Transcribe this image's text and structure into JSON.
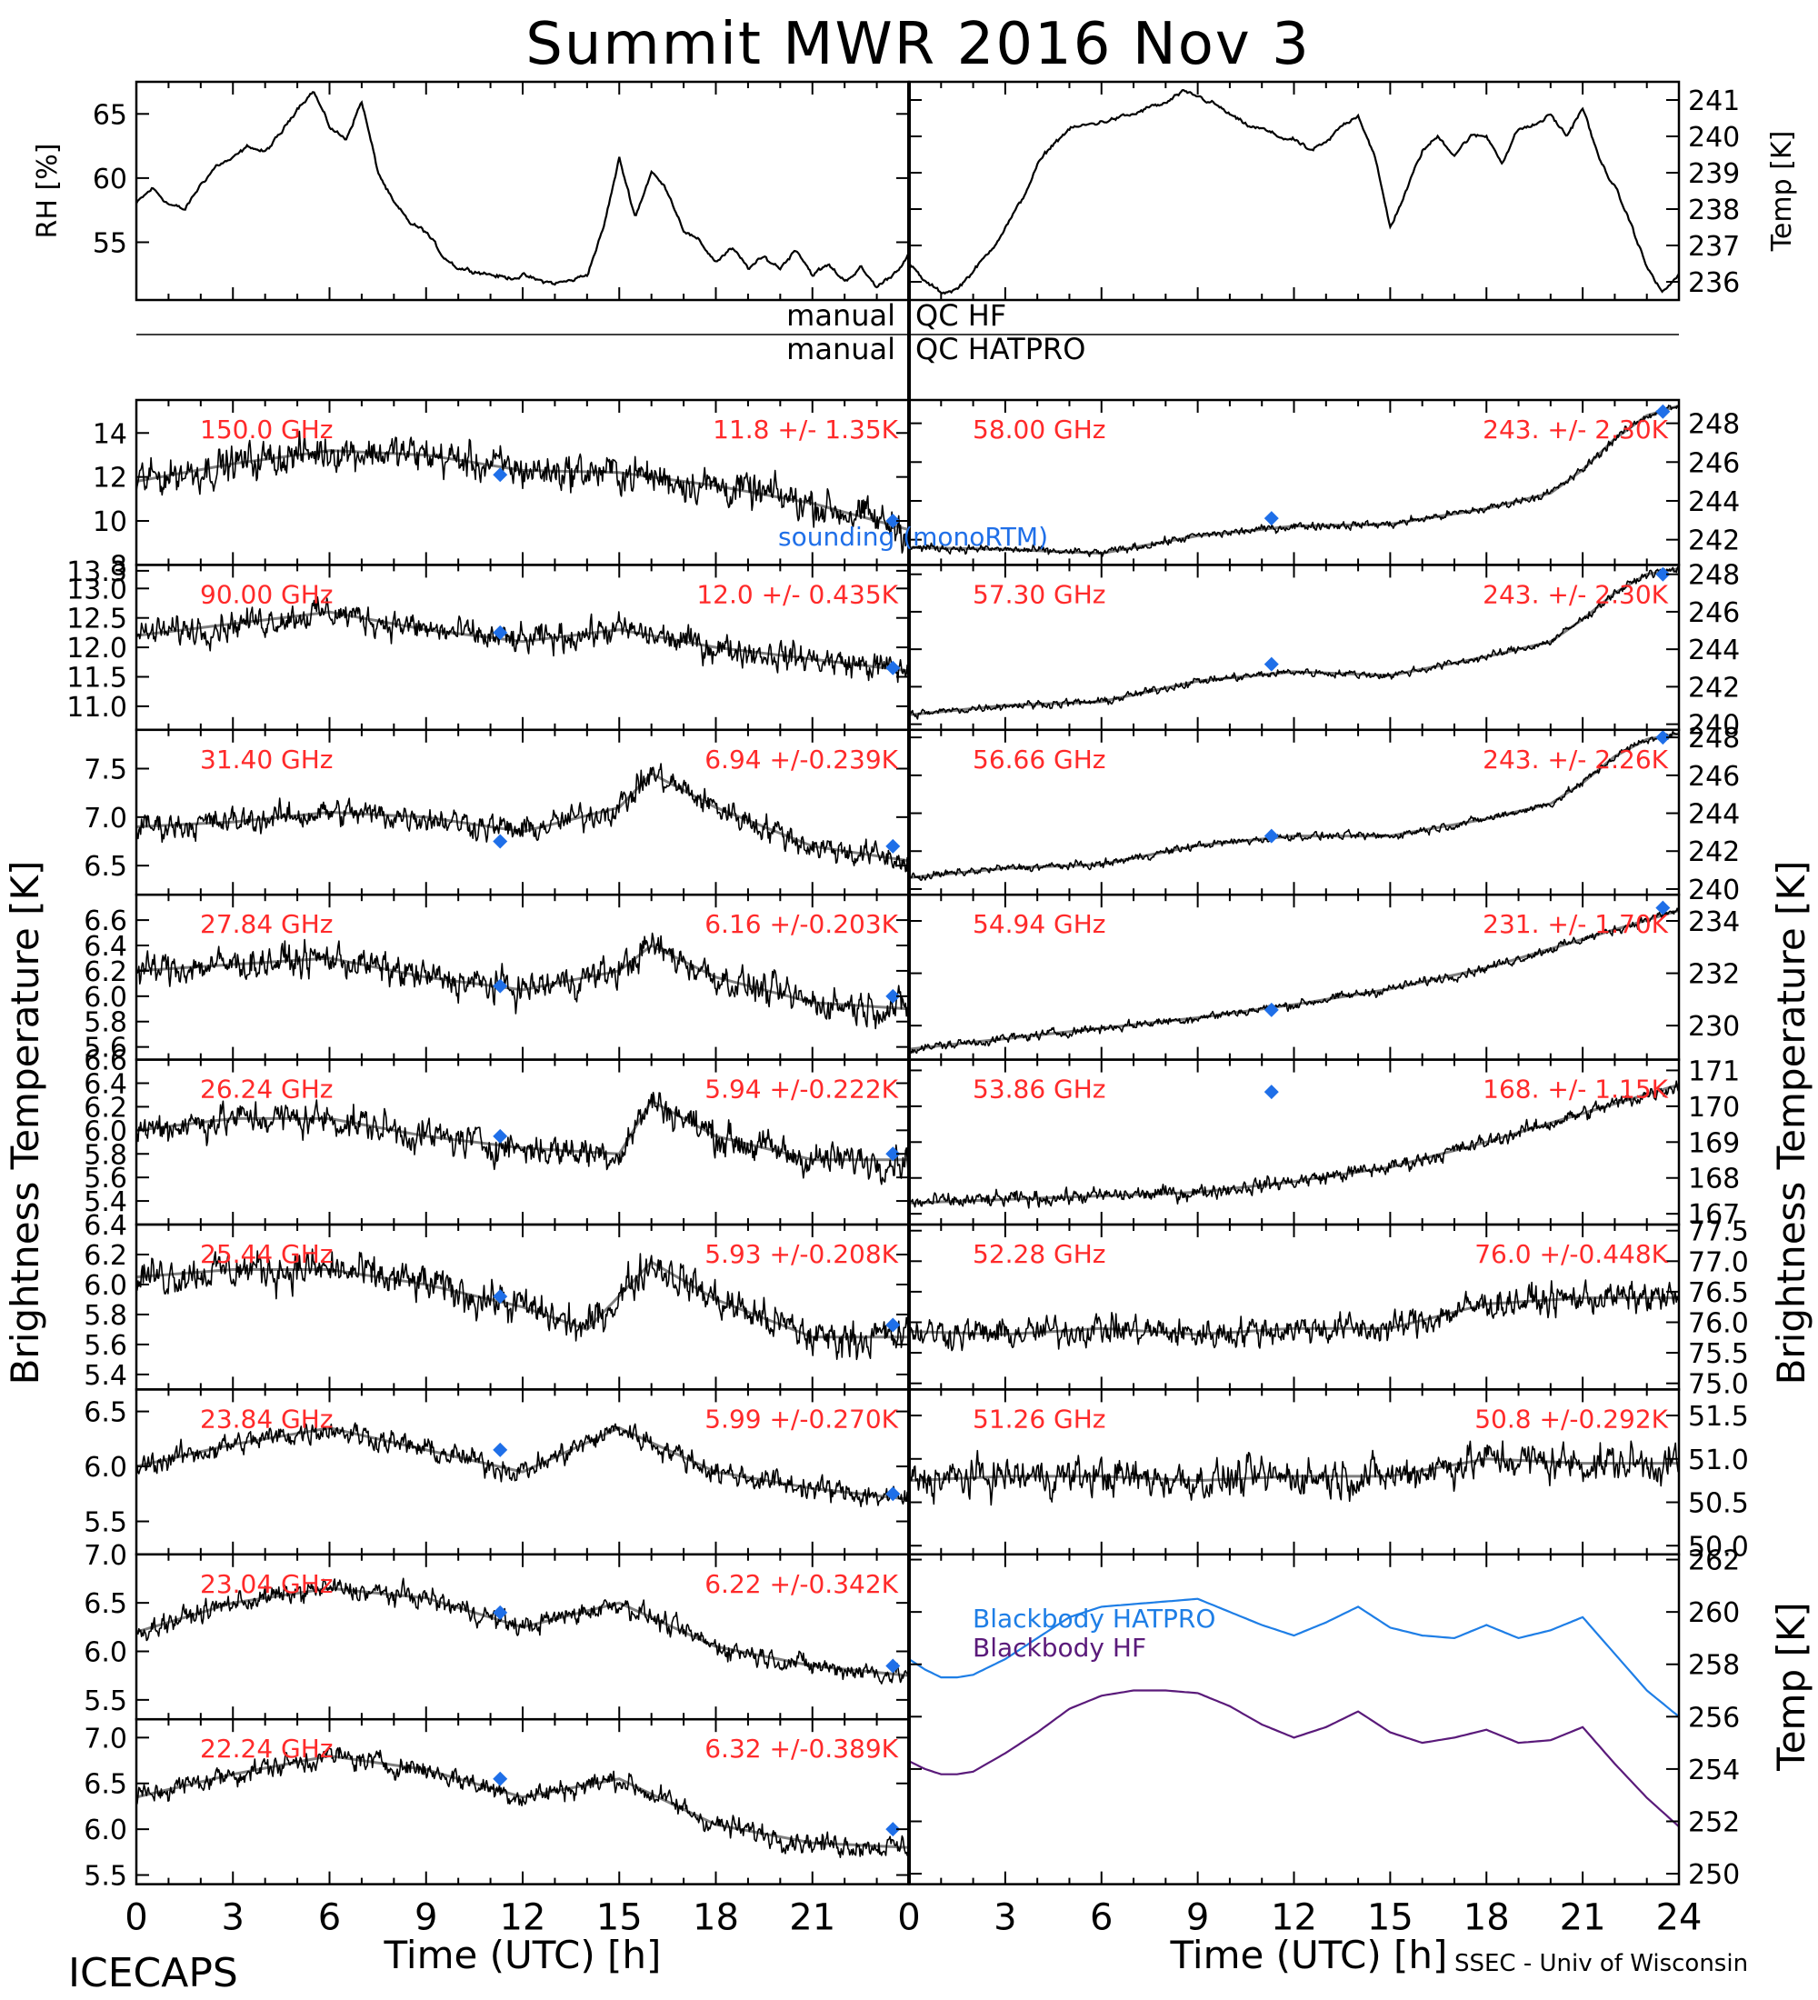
{
  "title": "Summit MWR 2016 Nov  3",
  "footer": {
    "left": "ICECAPS",
    "right": "SSEC - Univ of Wisconsin",
    "xlabel": "Time (UTC) [h]"
  },
  "labels": {
    "rh": "RH [%]",
    "temp": "Temp [K]",
    "tb": "Brightness Temperature [K]",
    "qc_hf": "manual",
    "qc_hf_r": "QC HF",
    "qc_hatpro": "manual",
    "qc_hatpro_r": "QC HATPRO",
    "sounding": "sounding (monoRTM)",
    "bb_hatpro": "Blackbody HATPRO",
    "bb_hf": "Blackbody HF"
  },
  "colors": {
    "data": "#000000",
    "annotation": "#ff2a2a",
    "sounding": "#1f6fe8",
    "bb_hatpro": "#1e7ee6",
    "bb_hf": "#5a1a7a"
  },
  "chart_data": [
    {
      "type": "line",
      "id": "rh",
      "ylabel": "RH [%]",
      "xlim": [
        0,
        24
      ],
      "ylim": [
        50.5,
        67.5
      ],
      "yticks": [
        55,
        60,
        65
      ],
      "x": [
        0,
        0.5,
        1,
        1.5,
        2,
        2.5,
        3,
        3.5,
        4,
        4.5,
        5,
        5.5,
        6,
        6.5,
        7,
        7.5,
        8,
        8.5,
        9,
        9.5,
        10,
        10.5,
        11,
        11.5,
        12,
        12.5,
        13,
        13.5,
        14,
        14.5,
        15,
        15.5,
        16,
        16.5,
        17,
        17.5,
        18,
        18.5,
        19,
        19.5,
        20,
        20.5,
        21,
        21.5,
        22,
        22.5,
        23,
        23.5,
        24
      ],
      "y": [
        58,
        59.2,
        58,
        57.5,
        59.5,
        61,
        61.5,
        62.5,
        62,
        63.5,
        65.5,
        66.8,
        64,
        63,
        66,
        60.5,
        58,
        56.5,
        55.8,
        54,
        53,
        52.8,
        52.5,
        52.2,
        52.4,
        52,
        51.8,
        52,
        52.5,
        56,
        61.5,
        57,
        60.5,
        59,
        56,
        55,
        53.5,
        54.5,
        53,
        53.8,
        53,
        54.5,
        52.5,
        53.2,
        52,
        53,
        51.5,
        52.5,
        54
      ]
    },
    {
      "type": "line",
      "id": "temp",
      "ylabel": "Temp [K]",
      "xlim": [
        0,
        24
      ],
      "ylim": [
        235.5,
        241.5
      ],
      "yticks": [
        236,
        237,
        238,
        239,
        240,
        241
      ],
      "x": [
        0,
        0.5,
        1,
        1.5,
        2,
        2.5,
        3,
        3.5,
        4,
        4.5,
        5,
        5.5,
        6,
        6.5,
        7,
        7.5,
        8,
        8.5,
        9,
        9.5,
        10,
        10.5,
        11,
        11.5,
        12,
        12.5,
        13,
        13.5,
        14,
        14.5,
        15,
        15.5,
        16,
        16.5,
        17,
        17.5,
        18,
        18.5,
        19,
        19.5,
        20,
        20.5,
        21,
        21.5,
        22,
        22.5,
        23,
        23.5,
        24
      ],
      "y": [
        236.5,
        236,
        235.7,
        235.8,
        236.3,
        236.8,
        237.5,
        238.2,
        239.2,
        239.8,
        240.2,
        240.3,
        240.4,
        240.5,
        240.6,
        240.8,
        240.9,
        241.2,
        241.1,
        240.9,
        240.6,
        240.3,
        240.2,
        240.0,
        239.9,
        239.6,
        239.8,
        240.3,
        240.6,
        239.5,
        237.5,
        238.5,
        239.6,
        240,
        239.5,
        240,
        240,
        239.3,
        240.2,
        240.3,
        240.6,
        240.0,
        240.8,
        239.4,
        238.6,
        237.6,
        236.4,
        235.7,
        236.2
      ]
    },
    {
      "type": "scatter",
      "id": "ch150",
      "freq": "150.0 GHz",
      "stat": "11.8 +/- 1.35K",
      "ylim": [
        8,
        15.5
      ],
      "yticks": [
        8,
        10,
        12,
        14
      ],
      "noise": 1.2,
      "x": [
        0,
        3,
        6,
        9,
        12,
        15,
        18,
        21,
        24
      ],
      "y": [
        11.8,
        12.6,
        13.2,
        13.0,
        12.3,
        12.2,
        11.6,
        10.8,
        9.6
      ],
      "sounding": [
        {
          "x": 11.3,
          "y": 12.1
        },
        {
          "x": 23.5,
          "y": 10.0
        }
      ]
    },
    {
      "type": "scatter",
      "id": "ch90",
      "freq": "90.00 GHz",
      "stat": "12.0 +/- 0.435K",
      "ylim": [
        10.6,
        13.4
      ],
      "yticks": [
        11.0,
        11.5,
        12.0,
        12.5,
        13.0,
        13.3
      ],
      "noise": 0.35,
      "x": [
        0,
        3,
        6,
        9,
        12,
        15,
        18,
        21,
        24
      ],
      "y": [
        12.2,
        12.4,
        12.6,
        12.3,
        12.1,
        12.3,
        12.0,
        11.8,
        11.6
      ],
      "sounding": [
        {
          "x": 11.3,
          "y": 12.25
        },
        {
          "x": 23.5,
          "y": 11.65
        }
      ]
    },
    {
      "type": "scatter",
      "id": "ch3140",
      "freq": "31.40 GHz",
      "stat": "6.94 +/-0.239K",
      "ylim": [
        6.2,
        7.9
      ],
      "yticks": [
        6.5,
        7.0,
        7.5
      ],
      "noise": 0.2,
      "x": [
        0,
        3,
        6,
        9,
        12,
        15,
        16,
        18,
        21,
        24
      ],
      "y": [
        6.9,
        6.95,
        7.05,
        7.0,
        6.85,
        7.1,
        7.45,
        7.1,
        6.7,
        6.55
      ],
      "sounding": [
        {
          "x": 11.3,
          "y": 6.75
        },
        {
          "x": 23.5,
          "y": 6.7
        }
      ]
    },
    {
      "type": "scatter",
      "id": "ch2784",
      "freq": "27.84 GHz",
      "stat": "6.16 +/-0.203K",
      "ylim": [
        5.5,
        6.8
      ],
      "yticks": [
        5.6,
        5.8,
        6.0,
        6.2,
        6.4,
        6.6
      ],
      "noise": 0.18,
      "x": [
        0,
        3,
        6,
        9,
        12,
        15,
        16,
        18,
        21,
        24
      ],
      "y": [
        6.2,
        6.25,
        6.3,
        6.15,
        6.05,
        6.2,
        6.4,
        6.15,
        5.95,
        5.9
      ],
      "sounding": [
        {
          "x": 11.3,
          "y": 6.08
        },
        {
          "x": 23.5,
          "y": 6.0
        }
      ]
    },
    {
      "type": "scatter",
      "id": "ch2624",
      "freq": "26.24 GHz",
      "stat": "5.94 +/-0.222K",
      "ylim": [
        5.2,
        6.6
      ],
      "yticks": [
        5.4,
        5.6,
        5.8,
        6.0,
        6.2,
        6.4,
        6.6
      ],
      "noise": 0.2,
      "x": [
        0,
        3,
        6,
        9,
        12,
        15,
        16,
        18,
        21,
        24
      ],
      "y": [
        6.0,
        6.1,
        6.1,
        5.95,
        5.85,
        5.8,
        6.25,
        5.95,
        5.75,
        5.75
      ],
      "sounding": [
        {
          "x": 11.3,
          "y": 5.95
        },
        {
          "x": 23.5,
          "y": 5.8
        }
      ]
    },
    {
      "type": "scatter",
      "id": "ch2544",
      "freq": "25.44 GHz",
      "stat": "5.93 +/-0.208K",
      "ylim": [
        5.3,
        6.4
      ],
      "yticks": [
        5.4,
        5.6,
        5.8,
        6.0,
        6.2,
        6.4
      ],
      "noise": 0.18,
      "x": [
        0,
        3,
        6,
        9,
        12,
        14,
        16,
        18,
        21,
        24
      ],
      "y": [
        6.05,
        6.1,
        6.1,
        6.0,
        5.85,
        5.7,
        6.15,
        5.9,
        5.65,
        5.65
      ],
      "sounding": [
        {
          "x": 11.3,
          "y": 5.92
        },
        {
          "x": 23.5,
          "y": 5.73
        }
      ]
    },
    {
      "type": "scatter",
      "id": "ch2384",
      "freq": "23.84 GHz",
      "stat": "5.99 +/-0.270K",
      "ylim": [
        5.2,
        6.7
      ],
      "yticks": [
        5.5,
        6.0,
        6.5
      ],
      "noise": 0.15,
      "x": [
        0,
        3,
        6,
        9,
        12,
        15,
        18,
        21,
        24
      ],
      "y": [
        6.0,
        6.2,
        6.35,
        6.15,
        5.95,
        6.35,
        5.95,
        5.8,
        5.7
      ],
      "sounding": [
        {
          "x": 11.3,
          "y": 6.15
        },
        {
          "x": 23.5,
          "y": 5.75
        }
      ]
    },
    {
      "type": "scatter",
      "id": "ch2304",
      "freq": "23.04 GHz",
      "stat": "6.22 +/-0.342K",
      "ylim": [
        5.3,
        7.0
      ],
      "yticks": [
        5.5,
        6.0,
        6.5,
        7.0
      ],
      "noise": 0.15,
      "x": [
        0,
        3,
        6,
        9,
        12,
        15,
        18,
        21,
        24
      ],
      "y": [
        6.2,
        6.5,
        6.65,
        6.55,
        6.25,
        6.5,
        6.05,
        5.85,
        5.75
      ],
      "sounding": [
        {
          "x": 11.3,
          "y": 6.4
        },
        {
          "x": 23.5,
          "y": 5.85
        }
      ]
    },
    {
      "type": "scatter",
      "id": "ch2224",
      "freq": "22.24 GHz",
      "stat": "6.32 +/-0.389K",
      "ylim": [
        5.4,
        7.2
      ],
      "yticks": [
        5.5,
        6.0,
        6.5,
        7.0
      ],
      "noise": 0.17,
      "x": [
        0,
        3,
        6,
        9,
        12,
        15,
        18,
        21,
        24
      ],
      "y": [
        6.35,
        6.6,
        6.8,
        6.65,
        6.35,
        6.55,
        6.05,
        5.85,
        5.8
      ],
      "sounding": [
        {
          "x": 11.3,
          "y": 6.55
        },
        {
          "x": 23.5,
          "y": 6.0
        }
      ]
    },
    {
      "type": "scatter",
      "id": "ch5800",
      "freq": "58.00 GHz",
      "stat": "243. +/- 2.30K",
      "ylim": [
        240.7,
        249.2
      ],
      "yticks": [
        242,
        244,
        246,
        248
      ],
      "noise": 0.3,
      "x": [
        0,
        3,
        6,
        9,
        12,
        15,
        18,
        20,
        21,
        22,
        23,
        24
      ],
      "y": [
        241.6,
        241.5,
        241.3,
        242.2,
        242.7,
        242.8,
        243.6,
        244.4,
        245.6,
        247.2,
        248.4,
        248.9
      ],
      "sounding": [
        {
          "x": 11.3,
          "y": 243.1
        },
        {
          "x": 23.5,
          "y": 248.6
        }
      ]
    },
    {
      "type": "scatter",
      "id": "ch5730",
      "freq": "57.30 GHz",
      "stat": "243. +/- 2.30K",
      "ylim": [
        239.7,
        248.5
      ],
      "yticks": [
        240,
        242,
        244,
        246,
        248
      ],
      "noise": 0.3,
      "x": [
        0,
        3,
        6,
        9,
        12,
        15,
        18,
        20,
        21,
        22,
        23,
        24
      ],
      "y": [
        240.5,
        241.0,
        241.2,
        242.3,
        242.8,
        242.6,
        243.6,
        244.4,
        245.6,
        247.0,
        248.0,
        248.3
      ],
      "sounding": [
        {
          "x": 11.3,
          "y": 243.2
        },
        {
          "x": 23.5,
          "y": 248.0
        }
      ]
    },
    {
      "type": "scatter",
      "id": "ch5666",
      "freq": "56.66 GHz",
      "stat": "243. +/- 2.26K",
      "ylim": [
        239.7,
        248.4
      ],
      "yticks": [
        240,
        242,
        244,
        246,
        248
      ],
      "noise": 0.3,
      "x": [
        0,
        3,
        6,
        9,
        12,
        15,
        18,
        20,
        21,
        22,
        23,
        24
      ],
      "y": [
        240.6,
        241.1,
        241.3,
        242.3,
        242.8,
        242.8,
        243.7,
        244.5,
        245.6,
        247.0,
        247.9,
        248.2
      ],
      "sounding": [
        {
          "x": 11.3,
          "y": 242.8
        },
        {
          "x": 23.5,
          "y": 248.0
        }
      ]
    },
    {
      "type": "scatter",
      "id": "ch5494",
      "freq": "54.94 GHz",
      "stat": "231. +/- 1.70K",
      "ylim": [
        228.7,
        235.0
      ],
      "yticks": [
        230,
        232,
        234
      ],
      "noise": 0.25,
      "x": [
        0,
        3,
        6,
        9,
        12,
        15,
        18,
        21,
        24
      ],
      "y": [
        229.1,
        229.5,
        229.9,
        230.3,
        230.8,
        231.4,
        232.2,
        233.3,
        234.4
      ],
      "sounding": [
        {
          "x": 11.3,
          "y": 230.6
        },
        {
          "x": 23.5,
          "y": 234.5
        }
      ]
    },
    {
      "type": "scatter",
      "id": "ch5386",
      "freq": "53.86 GHz",
      "stat": "168. +/- 1.15K",
      "ylim": [
        166.7,
        171.3
      ],
      "yticks": [
        167,
        168,
        169,
        170,
        171
      ],
      "noise": 0.3,
      "x": [
        0,
        3,
        6,
        9,
        12,
        15,
        18,
        21,
        24
      ],
      "y": [
        167.3,
        167.4,
        167.5,
        167.6,
        167.9,
        168.3,
        169.0,
        169.8,
        170.6
      ],
      "sounding": [
        {
          "x": 11.3,
          "y": 170.4
        }
      ]
    },
    {
      "type": "scatter",
      "id": "ch5228",
      "freq": "52.28 GHz",
      "stat": "76.0 +/-0.448K",
      "ylim": [
        74.9,
        77.6
      ],
      "yticks": [
        75.0,
        75.5,
        76.0,
        76.5,
        77.0,
        77.5
      ],
      "noise": 0.35,
      "x": [
        0,
        3,
        6,
        9,
        12,
        15,
        18,
        21,
        24
      ],
      "y": [
        75.85,
        75.8,
        75.9,
        75.8,
        75.9,
        75.9,
        76.3,
        76.4,
        76.4
      ],
      "sounding": []
    },
    {
      "type": "scatter",
      "id": "ch5126",
      "freq": "51.26 GHz",
      "stat": "50.8 +/-0.292K",
      "ylim": [
        49.9,
        51.8
      ],
      "yticks": [
        50.0,
        50.5,
        51.0,
        51.5
      ],
      "noise": 0.3,
      "x": [
        0,
        3,
        6,
        9,
        12,
        15,
        18,
        21,
        24
      ],
      "y": [
        50.75,
        50.8,
        50.8,
        50.75,
        50.8,
        50.8,
        51.0,
        50.95,
        50.95
      ],
      "sounding": []
    },
    {
      "type": "line",
      "id": "blackbody",
      "ylabel": "Temp [K]",
      "xlim": [
        0,
        24
      ],
      "ylim": [
        249.6,
        262.2
      ],
      "yticks": [
        250,
        252,
        254,
        256,
        258,
        260,
        262
      ],
      "series": [
        {
          "name": "Blackbody HATPRO",
          "x": [
            0,
            0.5,
            1,
            1.5,
            2,
            3,
            4,
            5,
            6,
            7,
            8,
            9,
            10,
            11,
            12,
            13,
            14,
            15,
            16,
            17,
            18,
            19,
            20,
            21,
            22,
            23,
            24
          ],
          "y": [
            258.2,
            257.8,
            257.5,
            257.5,
            257.6,
            258.2,
            259.0,
            259.8,
            260.2,
            260.3,
            260.4,
            260.5,
            260.0,
            259.5,
            259.1,
            259.6,
            260.2,
            259.4,
            259.1,
            259.0,
            259.5,
            259.0,
            259.3,
            259.8,
            258.4,
            257.0,
            256.0
          ]
        },
        {
          "name": "Blackbody HF",
          "x": [
            0,
            0.5,
            1,
            1.5,
            2,
            3,
            4,
            5,
            6,
            7,
            8,
            9,
            10,
            11,
            12,
            13,
            14,
            15,
            16,
            17,
            18,
            19,
            20,
            21,
            22,
            23,
            24
          ],
          "y": [
            254.3,
            254.0,
            253.8,
            253.8,
            253.9,
            254.6,
            255.4,
            256.3,
            256.8,
            257.0,
            257.0,
            256.9,
            256.4,
            255.7,
            255.2,
            255.6,
            256.2,
            255.4,
            255.0,
            255.2,
            255.5,
            255.0,
            255.1,
            255.6,
            254.2,
            252.9,
            251.8
          ]
        }
      ]
    }
  ],
  "x_ticks_left": [
    "0",
    "3",
    "6",
    "9",
    "12",
    "15",
    "18",
    "21"
  ],
  "x_ticks_right": [
    "0",
    "3",
    "6",
    "9",
    "12",
    "15",
    "18",
    "21",
    "24"
  ]
}
